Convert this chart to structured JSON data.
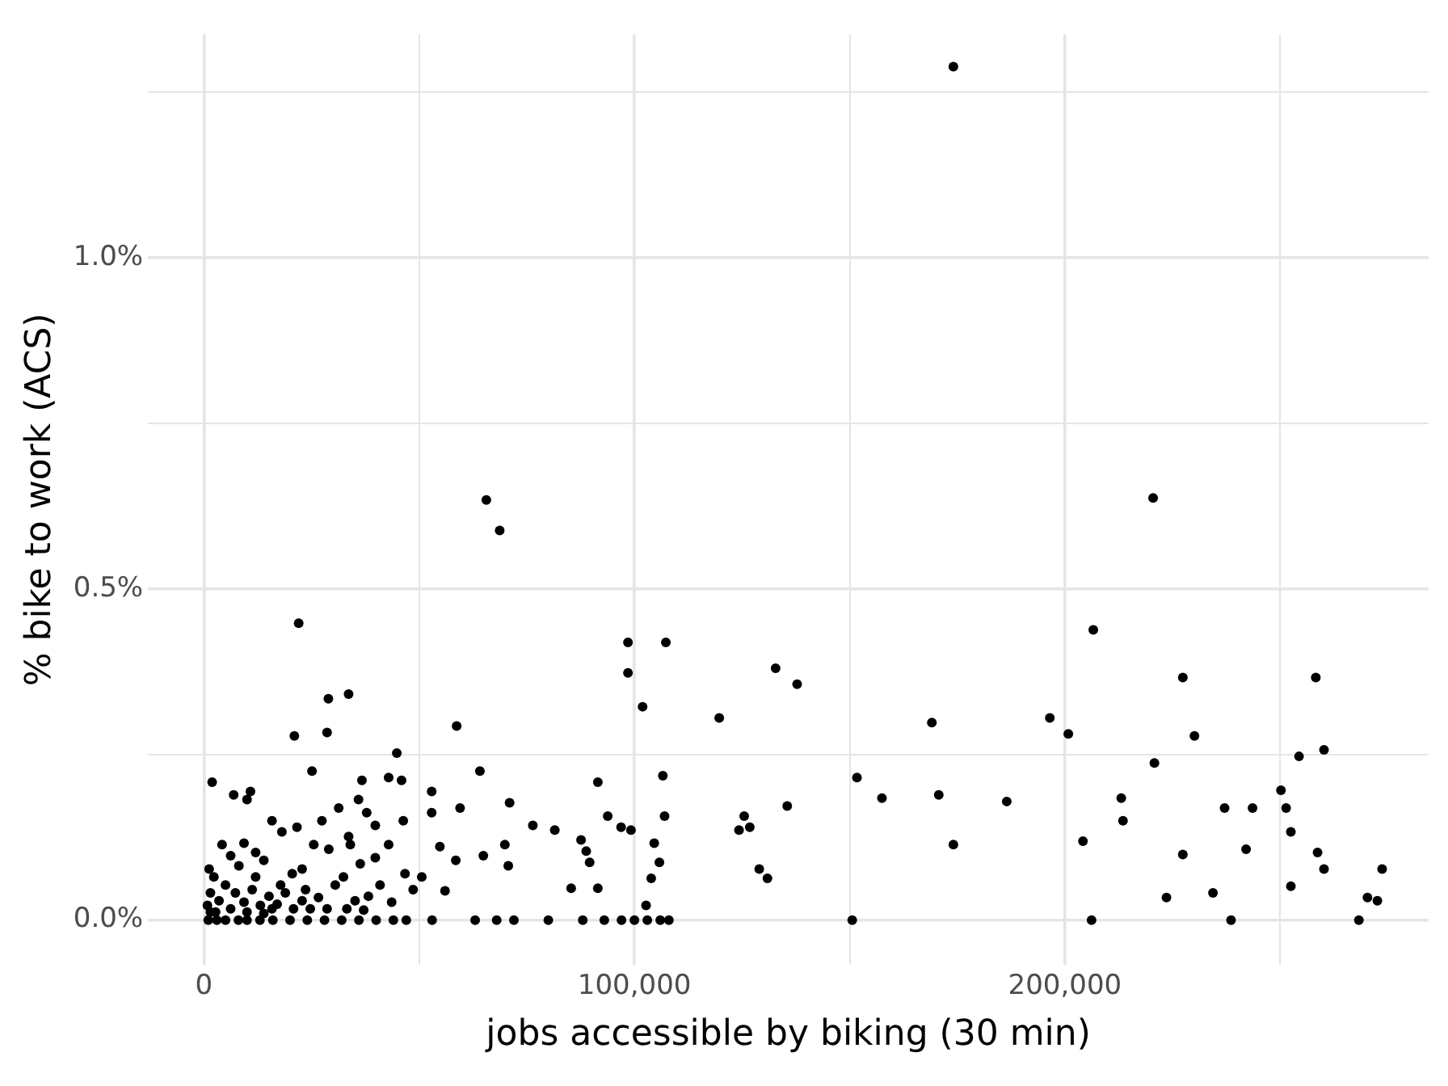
{
  "chart_data": {
    "type": "scatter",
    "xlabel": "jobs accessible by biking (30 min)",
    "ylabel": "% bike to work (ACS)",
    "grid": true,
    "legend": false,
    "marker": "circle",
    "xlim": [
      -13000,
      284500
    ],
    "ylim": [
      -0.068,
      1.337
    ],
    "xticks": [
      0,
      {
        "value": 50000,
        "label": null
      },
      {
        "value": 100000,
        "label": "100,000"
      },
      {
        "value": 150000,
        "label": null
      },
      {
        "value": 200000,
        "label": "200,000"
      },
      {
        "value": 250000,
        "label": null
      }
    ],
    "yticks": [
      {
        "value": 0,
        "label": "0.0%"
      },
      {
        "value": 0.25,
        "label": null
      },
      {
        "value": 0.5,
        "label": "0.5%"
      },
      {
        "value": 0.75,
        "label": null
      },
      {
        "value": 1.0,
        "label": "1.0%"
      },
      {
        "value": 1.25,
        "label": null
      }
    ],
    "series": [
      {
        "color": "#000000",
        "x": [
          174100,
          65600,
          68700,
          220500,
          22000,
          98500,
          107300,
          98500,
          101900,
          206600,
          132800,
          137800,
          227400,
          258300,
          119700,
          169100,
          196500,
          200800,
          58700,
          28900,
          33600,
          230100,
          260200,
          220800,
          254400,
          21000,
          28600,
          44800,
          64100,
          25100,
          1900,
          151700,
          170700,
          157500,
          186500,
          213100,
          237100,
          243600,
          251400,
          250200,
          106600,
          91500,
          125500,
          126800,
          124300,
          135500,
          129000,
          130900,
          174100,
          204200,
          213500,
          227400,
          242100,
          252500,
          258700,
          260200,
          273700,
          223600,
          234400,
          252500,
          270300,
          272600,
          268300,
          238600,
          206200,
          150600,
          52900,
          59500,
          52900,
          71000,
          76400,
          81500,
          69900,
          70700,
          64900,
          54800,
          58500,
          50600,
          56000,
          87600,
          88800,
          89600,
          85300,
          91500,
          93800,
          96900,
          99200,
          104600,
          105800,
          103900,
          102700,
          107000,
          37800,
          39800,
          46300,
          45900,
          42900,
          36700,
          35900,
          53000,
          63000,
          68000,
          72000,
          80000,
          88000,
          93000,
          97000,
          100000,
          103000,
          106000,
          108000,
          1000,
          3000,
          5000,
          8000,
          10000,
          13000,
          16000,
          20000,
          24000,
          28000,
          32000,
          36000,
          40000,
          44000,
          47000,
          6900,
          10000,
          10800,
          15800,
          18100,
          21600,
          25500,
          27400,
          31300,
          34000,
          36300,
          39800,
          42900,
          46700,
          48600,
          4200,
          6200,
          8100,
          12000,
          13900,
          17800,
          20500,
          23600,
          26600,
          30500,
          32400,
          35100,
          38200,
          40900,
          43600,
          2300,
          1500,
          3500,
          5000,
          7300,
          9300,
          11200,
          13100,
          15100,
          17000,
          18900,
          20800,
          22800,
          24700,
          28600,
          33200,
          37100,
          800,
          1500,
          2700,
          6200,
          10000,
          13900,
          15800,
          1200,
          9300,
          12000,
          22800,
          29000,
          33600
        ],
        "values": [
          1.288,
          0.634,
          0.588,
          0.637,
          0.448,
          0.419,
          0.419,
          0.373,
          0.322,
          0.438,
          0.38,
          0.356,
          0.366,
          0.366,
          0.305,
          0.298,
          0.305,
          0.281,
          0.293,
          0.334,
          0.341,
          0.278,
          0.257,
          0.237,
          0.247,
          0.278,
          0.283,
          0.252,
          0.225,
          0.225,
          0.208,
          0.215,
          0.189,
          0.184,
          0.179,
          0.184,
          0.169,
          0.169,
          0.169,
          0.196,
          0.218,
          0.208,
          0.157,
          0.14,
          0.136,
          0.172,
          0.077,
          0.063,
          0.114,
          0.119,
          0.15,
          0.099,
          0.107,
          0.133,
          0.102,
          0.077,
          0.077,
          0.034,
          0.041,
          0.051,
          0.034,
          0.029,
          0,
          0,
          0,
          0,
          0.194,
          0.169,
          0.162,
          0.177,
          0.143,
          0.136,
          0.114,
          0.082,
          0.097,
          0.111,
          0.09,
          0.065,
          0.044,
          0.121,
          0.104,
          0.087,
          0.048,
          0.048,
          0.157,
          0.14,
          0.136,
          0.116,
          0.087,
          0.063,
          0.022,
          0.157,
          0.162,
          0.143,
          0.15,
          0.211,
          0.215,
          0.211,
          0.182,
          0,
          0,
          0,
          0,
          0,
          0,
          0,
          0,
          0,
          0,
          0,
          0,
          0,
          0,
          0,
          0,
          0,
          0,
          0,
          0,
          0,
          0,
          0,
          0,
          0,
          0,
          0,
          0.189,
          0.182,
          0.194,
          0.15,
          0.133,
          0.14,
          0.114,
          0.15,
          0.169,
          0.114,
          0.085,
          0.094,
          0.114,
          0.07,
          0.046,
          0.114,
          0.097,
          0.082,
          0.065,
          0.09,
          0.053,
          0.07,
          0.046,
          0.034,
          0.053,
          0.065,
          0.029,
          0.036,
          0.053,
          0.027,
          0.065,
          0.041,
          0.029,
          0.053,
          0.041,
          0.027,
          0.046,
          0.022,
          0.036,
          0.024,
          0.041,
          0.017,
          0.029,
          0.017,
          0.017,
          0.017,
          0.015,
          0.022,
          0.012,
          0.012,
          0.017,
          0.012,
          0.01,
          0.017,
          0.077,
          0.116,
          0.102,
          0.077,
          0.107,
          0.126
        ]
      }
    ]
  }
}
